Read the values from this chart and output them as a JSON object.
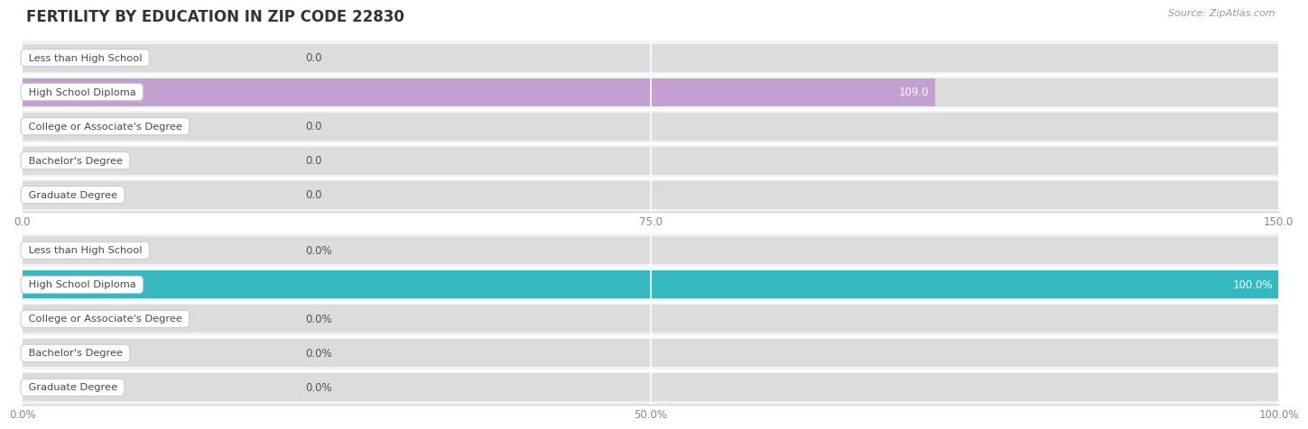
{
  "title": "FERTILITY BY EDUCATION IN ZIP CODE 22830",
  "source": "Source: ZipAtlas.com",
  "categories": [
    "Less than High School",
    "High School Diploma",
    "College or Associate's Degree",
    "Bachelor's Degree",
    "Graduate Degree"
  ],
  "abs_values": [
    0.0,
    109.0,
    0.0,
    0.0,
    0.0
  ],
  "pct_values": [
    0.0,
    100.0,
    0.0,
    0.0,
    0.0
  ],
  "abs_xlim_max": 150.0,
  "pct_xlim_max": 100.0,
  "abs_xticks": [
    0.0,
    75.0,
    150.0
  ],
  "pct_xticks": [
    0.0,
    50.0,
    100.0
  ],
  "abs_xtick_labels": [
    "0.0",
    "75.0",
    "150.0"
  ],
  "pct_xtick_labels": [
    "0.0%",
    "50.0%",
    "100.0%"
  ],
  "bar_color_purple": "#c4a0d0",
  "bar_color_teal": "#35b8c0",
  "bar_track_light": "#dcdcdc",
  "row_bg": "#f2f2f2",
  "sep_color": "#ffffff",
  "label_text_color": "#4a4a4a",
  "value_text_dark": "#555555",
  "value_text_light": "#ffffff",
  "title_color": "#333333",
  "source_color": "#999999",
  "background_color": "#ffffff",
  "bar_height": 0.82,
  "label_pill_facecolor": "#ffffff",
  "label_pill_edgecolor": "#cccccc",
  "tick_color": "#888888"
}
